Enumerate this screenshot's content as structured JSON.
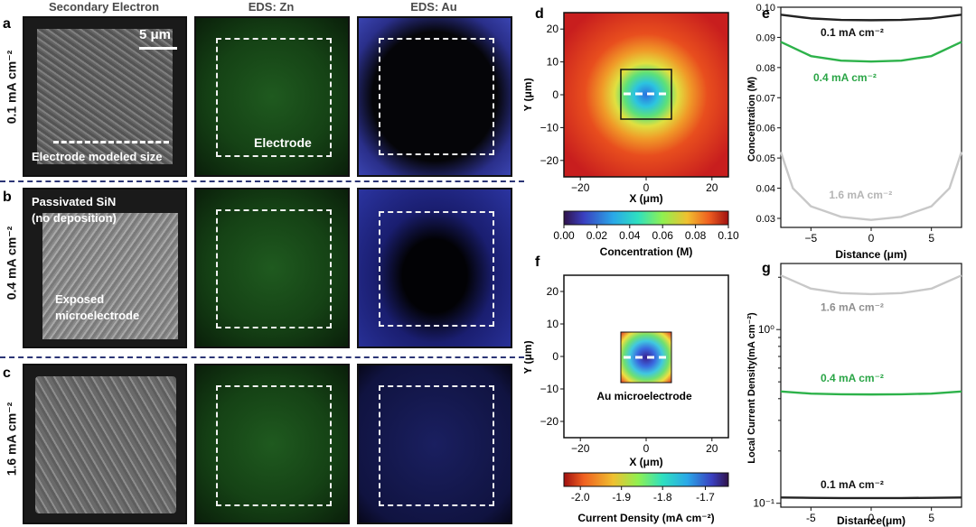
{
  "column_titles": {
    "sem": "Secondary Electron",
    "zn": "EDS: Zn",
    "au": "EDS: Au"
  },
  "row_labels": {
    "a": "0.1 mA cm⁻²",
    "b": "0.4 mA cm⁻²",
    "c": "1.6 mA cm⁻²"
  },
  "panel_letters": {
    "a": "a",
    "b": "b",
    "c": "c",
    "d": "d",
    "e": "e",
    "f": "f",
    "g": "g"
  },
  "annotations": {
    "scalebar": "5 μm",
    "electrode_modeled": "Electrode modeled size",
    "electrode": "Electrode",
    "passivated_1": "Passivated SiN",
    "passivated_2": "(no deposition)",
    "exposed_1": "Exposed",
    "exposed_2": "microelectrode",
    "au_micro": "Au microelectrode"
  },
  "chart_data": [
    {
      "panel": "d",
      "type": "heatmap",
      "xlabel": "X (μm)",
      "ylabel": "Y (μm)",
      "xlim": [
        -25,
        25
      ],
      "ylim": [
        -25,
        25
      ],
      "xticks": [
        "−20",
        "0",
        "20"
      ],
      "yticks": [
        "20",
        "10",
        "0",
        "−10",
        "−20"
      ],
      "colorbar": {
        "label": "Concentration (M)",
        "ticks": [
          "0.00",
          "0.02",
          "0.04",
          "0.06",
          "0.08",
          "0.10"
        ],
        "colormap": "jet"
      }
    },
    {
      "panel": "e",
      "type": "line",
      "xlabel": "Distance (μm)",
      "ylabel": "Concentration (M)",
      "xlim": [
        -7.5,
        7.5
      ],
      "ylim": [
        0.027,
        0.1
      ],
      "xticks": [
        "−5",
        "0",
        "5"
      ],
      "yticks": [
        "0.10",
        "0.09",
        "0.08",
        "0.07",
        "0.06",
        "0.05",
        "0.04",
        "0.03"
      ],
      "series": [
        {
          "name": "0.1 mA cm⁻²",
          "color": "#222222",
          "x": [
            -7.5,
            -5,
            -2.5,
            0,
            2.5,
            5,
            7.5
          ],
          "y": [
            0.0975,
            0.0963,
            0.0958,
            0.0957,
            0.0958,
            0.0963,
            0.0975
          ]
        },
        {
          "name": "0.4 mA cm⁻²",
          "color": "#2db24a",
          "x": [
            -7.5,
            -5,
            -2.5,
            0,
            2.5,
            5,
            7.5
          ],
          "y": [
            0.0885,
            0.0838,
            0.0823,
            0.082,
            0.0823,
            0.0838,
            0.0885
          ]
        },
        {
          "name": "1.6 mA cm⁻²",
          "color": "#c8c8c8",
          "x": [
            -7.5,
            -6.5,
            -5,
            -2.5,
            0,
            2.5,
            5,
            6.5,
            7.5
          ],
          "y": [
            0.052,
            0.04,
            0.034,
            0.0305,
            0.0295,
            0.0305,
            0.034,
            0.04,
            0.052
          ]
        }
      ],
      "series_labels": [
        "0.1 mA cm⁻²",
        "0.4 mA cm⁻²",
        "1.6 mA cm⁻²"
      ]
    },
    {
      "panel": "f",
      "type": "heatmap",
      "xlabel": "X (μm)",
      "ylabel": "Y (μm)",
      "xlim": [
        -25,
        25
      ],
      "ylim": [
        -25,
        25
      ],
      "xticks": [
        "−20",
        "0",
        "20"
      ],
      "yticks": [
        "20",
        "10",
        "0",
        "−10",
        "−20"
      ],
      "colorbar": {
        "label": "Current Density (mA cm⁻²)",
        "ticks": [
          "-2.0",
          "-1.9",
          "-1.8",
          "-1.7"
        ],
        "colormap": "jet_r"
      }
    },
    {
      "panel": "g",
      "type": "line",
      "xlabel": "Distance(μm)",
      "ylabel": "Local Current Density(mA cm⁻²)",
      "yscale": "log",
      "xlim": [
        -7.5,
        7.5
      ],
      "ylim": [
        0.095,
        2.4
      ],
      "xticks": [
        "-5",
        "0",
        "5"
      ],
      "yticks": [
        "10⁰",
        "10⁻¹"
      ],
      "series": [
        {
          "name": "1.6 mA cm⁻²",
          "color": "#c8c8c8",
          "x": [
            -7.5,
            -5,
            -2.5,
            0,
            2.5,
            5,
            7.5
          ],
          "y": [
            2.05,
            1.72,
            1.62,
            1.6,
            1.62,
            1.72,
            2.05
          ]
        },
        {
          "name": "0.4 mA cm⁻²",
          "color": "#2db24a",
          "x": [
            -7.5,
            -5,
            -2.5,
            0,
            2.5,
            5,
            7.5
          ],
          "y": [
            0.44,
            0.428,
            0.424,
            0.423,
            0.424,
            0.428,
            0.44
          ]
        },
        {
          "name": "0.1 mA cm⁻²",
          "color": "#222222",
          "x": [
            -7.5,
            -5,
            -2.5,
            0,
            2.5,
            5,
            7.5
          ],
          "y": [
            0.108,
            0.1075,
            0.1072,
            0.1071,
            0.1072,
            0.1075,
            0.108
          ]
        }
      ],
      "series_labels": [
        "1.6 mA cm⁻²",
        "0.4 mA cm⁻²",
        "0.1 mA cm⁻²"
      ]
    }
  ]
}
